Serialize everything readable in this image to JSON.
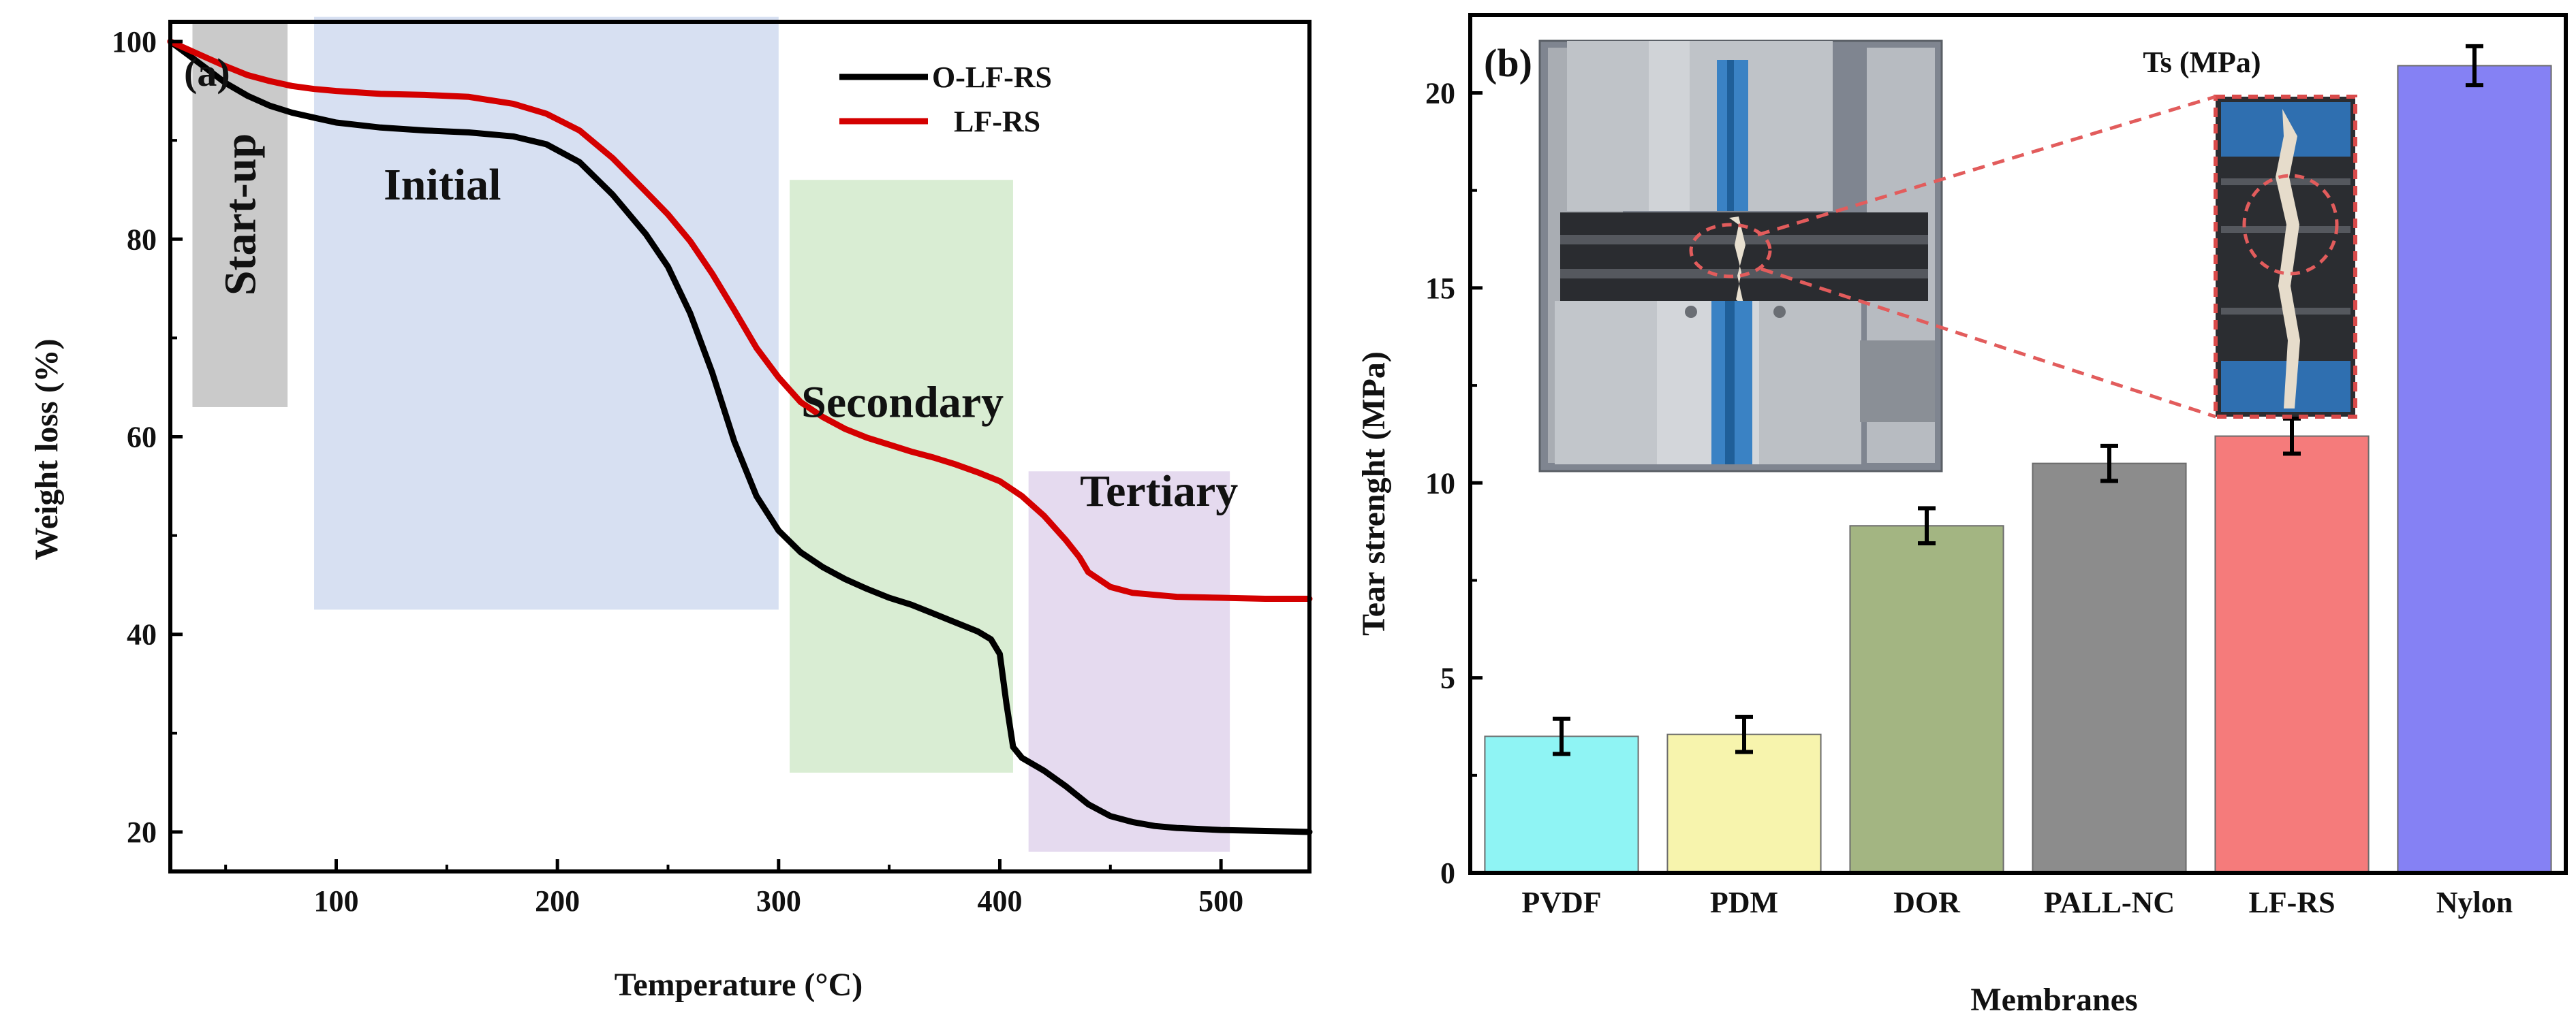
{
  "colors": {
    "o_lf_rs_line": "#000000",
    "lf_rs_line": "#d40000",
    "startup_region": "#9e9e9e",
    "initial_region": "#c9d6ee",
    "secondary_region": "#cfe9c8",
    "tertiary_region": "#e0d4ec",
    "bar_pvdf": "#8ff4f4",
    "bar_pdm": "#f7f4ad",
    "bar_dor": "#a3b582",
    "bar_pall_nc": "#8c8c8c",
    "bar_lf_rs": "#f57b7b",
    "bar_nylon": "#8581f4"
  },
  "chart_data": [
    {
      "type": "line",
      "panel_label": "(a)",
      "xlabel": "Temperature (°C)",
      "ylabel": "Weight loss (%)",
      "xlim": [
        25,
        540
      ],
      "ylim": [
        16,
        102
      ],
      "xticks": [
        100,
        200,
        300,
        400,
        500
      ],
      "yticks": [
        20,
        40,
        60,
        80,
        100
      ],
      "legend_position": "top-right",
      "regions": [
        {
          "name": "startup",
          "label": "Start-up",
          "x": [
            35,
            78
          ],
          "y": [
            63,
            102
          ],
          "color": "#9e9e9e",
          "opacity": 0.55,
          "vertical_label": true
        },
        {
          "name": "initial",
          "label": "Initial",
          "x": [
            90,
            300
          ],
          "y": [
            42.5,
            102.5
          ],
          "color": "#c9d6ee",
          "opacity": 0.75,
          "label_at": [
            148,
            84
          ]
        },
        {
          "name": "secondary",
          "label": "Secondary",
          "x": [
            305,
            406
          ],
          "y": [
            26,
            86
          ],
          "color": "#cfe9c8",
          "opacity": 0.8,
          "label_at": [
            356,
            62
          ]
        },
        {
          "name": "tertiary",
          "label": "Tertiary",
          "x": [
            413,
            504
          ],
          "y": [
            18,
            56.5
          ],
          "color": "#e0d4ec",
          "opacity": 0.85,
          "label_at": [
            472,
            53
          ]
        }
      ],
      "series": [
        {
          "name": "O-LF-RS",
          "color": "#000000",
          "x": [
            25,
            40,
            50,
            60,
            70,
            80,
            90,
            100,
            120,
            140,
            160,
            180,
            195,
            210,
            225,
            240,
            250,
            260,
            270,
            280,
            290,
            300,
            310,
            320,
            330,
            340,
            350,
            360,
            370,
            380,
            390,
            396,
            400,
            403,
            406,
            410,
            420,
            430,
            440,
            450,
            460,
            470,
            480,
            500,
            520,
            540
          ],
          "y": [
            100,
            97.5,
            95.8,
            94.5,
            93.5,
            92.8,
            92.3,
            91.8,
            91.3,
            91,
            90.8,
            90.4,
            89.6,
            87.8,
            84.5,
            80.5,
            77.2,
            72.5,
            66.5,
            59.5,
            54,
            50.5,
            48.3,
            46.8,
            45.6,
            44.6,
            43.7,
            43,
            42.1,
            41.2,
            40.3,
            39.5,
            38,
            33,
            28.6,
            27.5,
            26.2,
            24.6,
            22.8,
            21.6,
            21,
            20.6,
            20.4,
            20.2,
            20.1,
            20
          ]
        },
        {
          "name": "LF-RS",
          "color": "#d40000",
          "x": [
            25,
            40,
            50,
            60,
            70,
            80,
            90,
            100,
            120,
            140,
            160,
            180,
            195,
            210,
            225,
            240,
            250,
            260,
            270,
            280,
            290,
            300,
            310,
            320,
            330,
            340,
            350,
            360,
            370,
            380,
            390,
            400,
            410,
            420,
            430,
            436,
            440,
            450,
            460,
            470,
            480,
            500,
            520,
            540
          ],
          "y": [
            100,
            98.5,
            97.5,
            96.6,
            96,
            95.5,
            95.2,
            95,
            94.7,
            94.6,
            94.4,
            93.7,
            92.7,
            91,
            88.2,
            84.8,
            82.5,
            79.8,
            76.5,
            72.8,
            69,
            66,
            63.5,
            62,
            60.8,
            59.9,
            59.2,
            58.5,
            57.9,
            57.2,
            56.4,
            55.5,
            54,
            52,
            49.5,
            47.8,
            46.3,
            44.8,
            44.2,
            44,
            43.8,
            43.7,
            43.6,
            43.6
          ]
        }
      ]
    },
    {
      "type": "bar",
      "panel_label": "(b)",
      "inset_title": "Ts (MPa)",
      "xlabel": "Membranes",
      "ylabel": "Tear strenght (MPa)",
      "ylim": [
        0,
        22
      ],
      "yticks": [
        0,
        5,
        10,
        15,
        20
      ],
      "categories": [
        "PVDF",
        "PDM",
        "DOR",
        "PALL-NC",
        "LF-RS",
        "Nylon"
      ],
      "values": [
        3.5,
        3.55,
        8.9,
        10.5,
        11.2,
        20.7
      ],
      "errors": [
        0.45,
        0.45,
        0.45,
        0.45,
        0.45,
        0.5
      ],
      "bar_colors": [
        "#8ff4f4",
        "#f7f4ad",
        "#a3b582",
        "#8c8c8c",
        "#f57b7b",
        "#8581f4"
      ]
    }
  ]
}
